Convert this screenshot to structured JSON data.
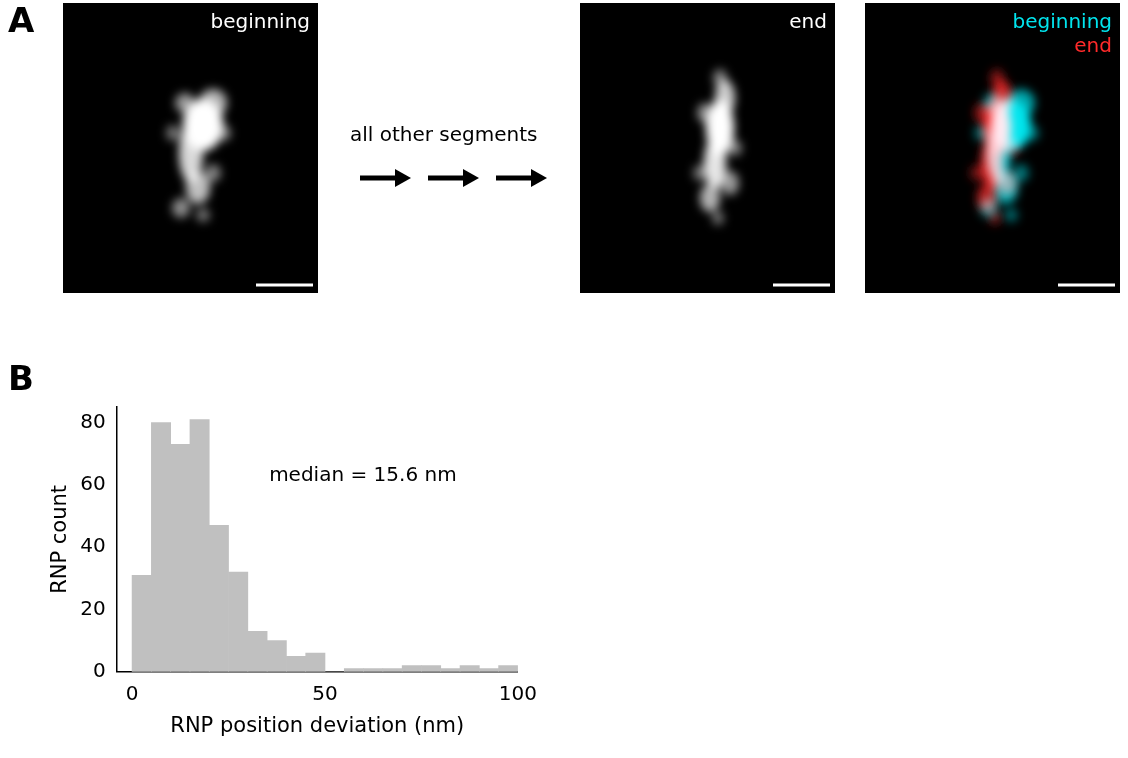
{
  "panel_a": {
    "letter": "A",
    "images": [
      {
        "label": "beginning"
      },
      {
        "label": "end"
      }
    ],
    "overlay": {
      "labels": [
        {
          "text": "beginning",
          "color": "#00e5ee"
        },
        {
          "text": "end",
          "color": "#ff2a2a"
        }
      ]
    },
    "arrow_label": "all other segments"
  },
  "chart_data": {
    "letter": "B",
    "type": "histogram",
    "xlabel": "RNP position deviation (nm)",
    "ylabel": "RNP count",
    "annotation": "median = 15.6 nm",
    "bins": [
      0,
      5,
      10,
      15,
      20,
      25,
      30,
      35,
      40,
      45,
      50,
      55,
      60,
      65,
      70,
      75,
      80,
      85,
      90,
      95,
      100
    ],
    "values": [
      31,
      80,
      73,
      81,
      47,
      32,
      13,
      10,
      5,
      6,
      0,
      1,
      1,
      1,
      2,
      2,
      1,
      2,
      1,
      2
    ],
    "color": "#c0c0c0",
    "xlim": [
      -4,
      100
    ],
    "xticks": [
      0,
      50,
      100
    ],
    "ylim": [
      0,
      85
    ],
    "yticks": [
      0,
      20,
      40,
      60,
      80
    ],
    "grid": false
  }
}
